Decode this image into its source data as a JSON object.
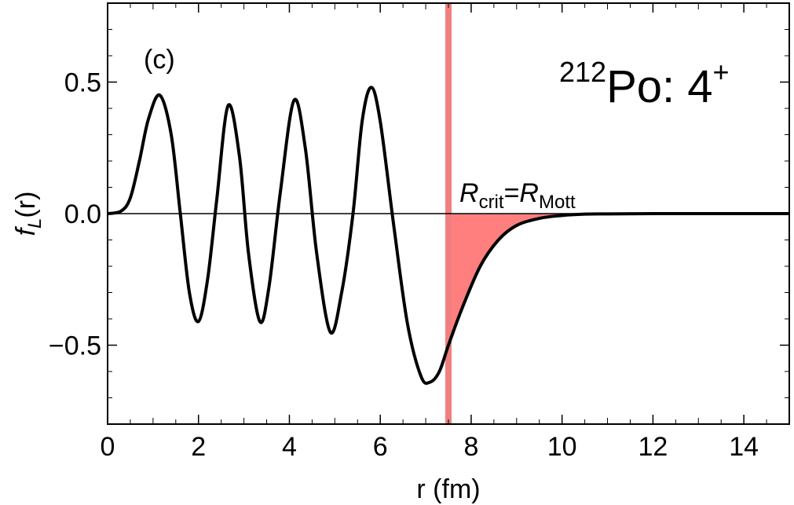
{
  "chart_data": {
    "type": "line",
    "panel_label": "(c)",
    "nucleus": {
      "mass_number": "212",
      "symbol": "Po: 4",
      "superscript": "+"
    },
    "xlabel": "r (fm)",
    "ylabel": {
      "f": "f",
      "sub": "L",
      "rest": "(r)"
    },
    "xlim": [
      0,
      15
    ],
    "ylim": [
      -0.8,
      0.8
    ],
    "xticks": [
      0,
      2,
      4,
      6,
      8,
      10,
      12,
      14
    ],
    "xtick_labels": [
      "0",
      "2",
      "4",
      "6",
      "8",
      "10",
      "12",
      "14"
    ],
    "yticks": [
      -0.5,
      0.0,
      0.5
    ],
    "ytick_labels": [
      "−0.5",
      "0.0",
      "0.5"
    ],
    "critical_radius": 7.5,
    "critical_label": {
      "R1": "R",
      "sub1": "crit",
      "eq": "=",
      "R2": "R",
      "sub2": "Mott"
    },
    "colors": {
      "curve": "#000000",
      "band": "#f08080",
      "fill": "#ff7f7f"
    },
    "series": [
      {
        "x": [
          0,
          0.3,
          0.5,
          0.7,
          0.9,
          1.15,
          1.4,
          1.6,
          1.8,
          2.0,
          2.2,
          2.4,
          2.65,
          2.9,
          3.1,
          3.35,
          3.55,
          3.8,
          4.1,
          4.35,
          4.6,
          4.9,
          5.15,
          5.4,
          5.6,
          5.8,
          6.0,
          6.3,
          6.6,
          6.9,
          7.1,
          7.3,
          7.5,
          7.8,
          8.2,
          8.6,
          9.0,
          9.5,
          10.0,
          10.5,
          11.0,
          12.0,
          13.0,
          14.0,
          15.0
        ],
        "y": [
          0.0,
          0.01,
          0.06,
          0.2,
          0.36,
          0.45,
          0.3,
          0.0,
          -0.3,
          -0.41,
          -0.25,
          0.05,
          0.41,
          0.22,
          -0.15,
          -0.41,
          -0.28,
          0.08,
          0.43,
          0.25,
          -0.15,
          -0.45,
          -0.3,
          0.0,
          0.35,
          0.48,
          0.35,
          -0.05,
          -0.42,
          -0.62,
          -0.64,
          -0.6,
          -0.5,
          -0.36,
          -0.2,
          -0.1,
          -0.045,
          -0.018,
          -0.007,
          -0.002,
          -0.001,
          0.0,
          0.0,
          0.0,
          0.0
        ]
      }
    ]
  }
}
